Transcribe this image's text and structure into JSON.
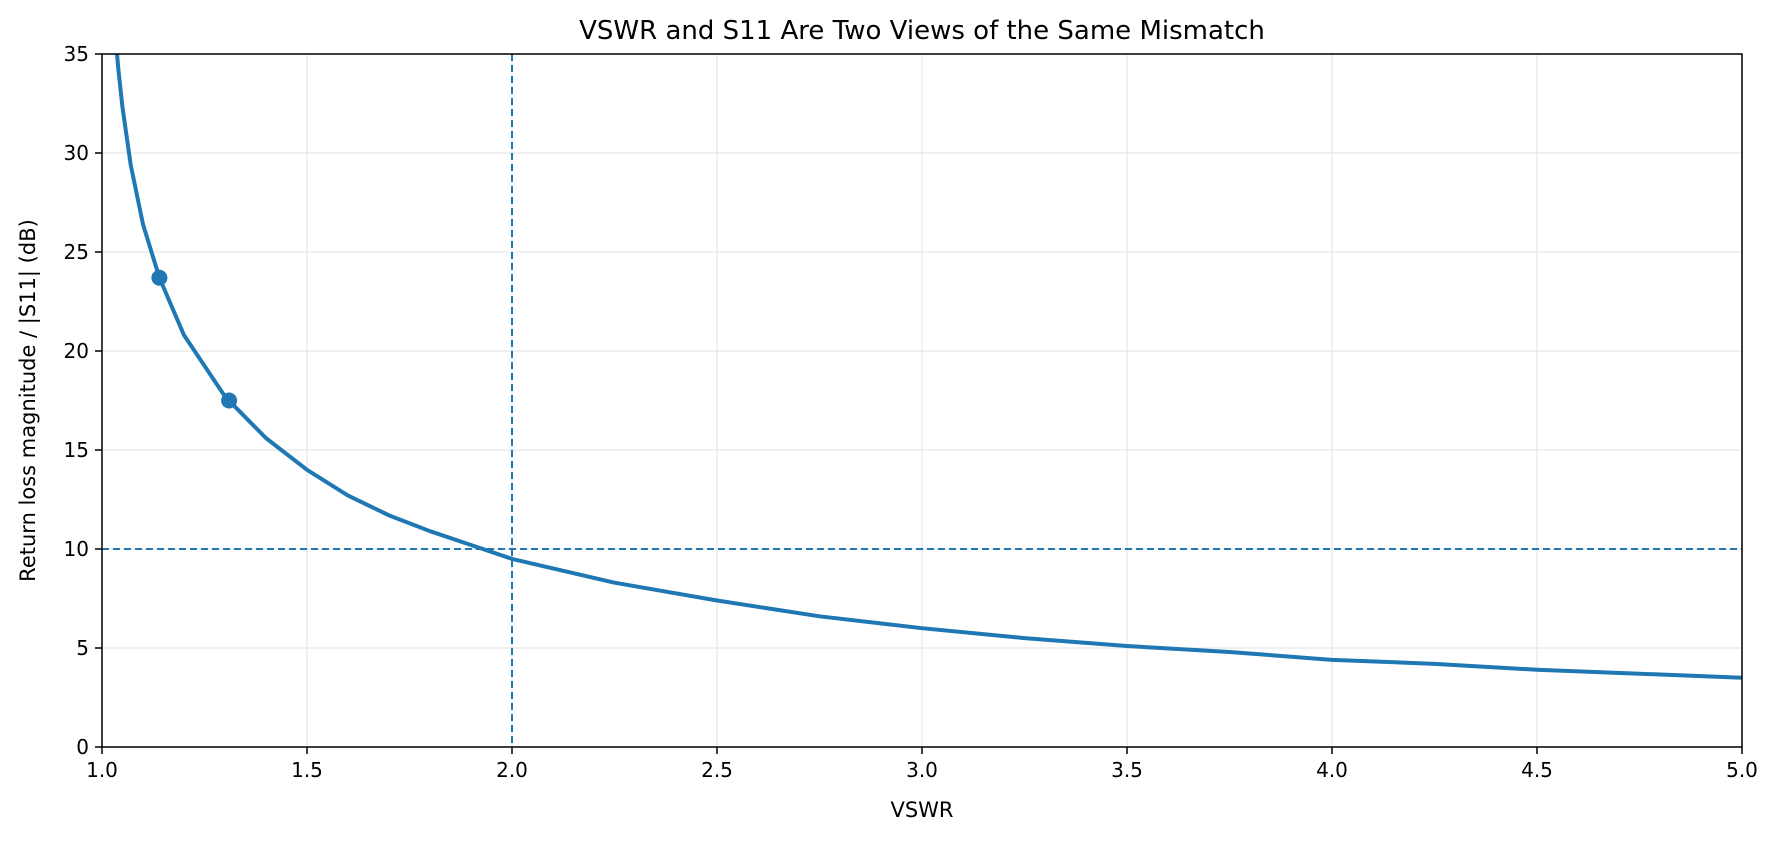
{
  "chart_data": {
    "type": "line",
    "title": "VSWR and S11 Are Two Views of the Same Mismatch",
    "xlabel": "VSWR",
    "ylabel": "Return loss magnitude / |S11| (dB)",
    "xlim": [
      1.0,
      5.0
    ],
    "ylim": [
      0,
      35
    ],
    "x_ticks": [
      1.0,
      1.5,
      2.0,
      2.5,
      3.0,
      3.5,
      4.0,
      4.5,
      5.0
    ],
    "x_tick_labels": [
      "1.0",
      "1.5",
      "2.0",
      "2.5",
      "3.0",
      "3.5",
      "4.0",
      "4.5",
      "5.0"
    ],
    "y_ticks": [
      0,
      5,
      10,
      15,
      20,
      25,
      30,
      35
    ],
    "y_tick_labels": [
      "0",
      "5",
      "10",
      "15",
      "20",
      "25",
      "30",
      "35"
    ],
    "grid": true,
    "series": [
      {
        "color": "#1f77b4",
        "x": [
          1.03,
          1.04,
          1.05,
          1.07,
          1.1,
          1.14,
          1.2,
          1.3,
          1.4,
          1.5,
          1.6,
          1.7,
          1.8,
          1.9,
          2.0,
          2.25,
          2.5,
          2.75,
          3.0,
          3.25,
          3.5,
          3.75,
          4.0,
          4.25,
          4.5,
          4.75,
          5.0
        ],
        "y": [
          36.6,
          34.2,
          32.3,
          29.4,
          26.4,
          23.7,
          20.8,
          17.7,
          15.6,
          14.0,
          12.7,
          11.7,
          10.9,
          10.2,
          9.5,
          8.3,
          7.4,
          6.6,
          6.0,
          5.5,
          5.1,
          4.8,
          4.4,
          4.2,
          3.9,
          3.7,
          3.5
        ]
      }
    ],
    "markers": [
      {
        "x": 1.14,
        "y": 23.7
      },
      {
        "x": 1.31,
        "y": 17.5
      }
    ],
    "reference_lines": [
      {
        "orientation": "vertical",
        "x": 2.0
      },
      {
        "orientation": "horizontal",
        "y": 10
      }
    ],
    "colors": {
      "line": "#1f77b4",
      "reference": "#1f77b4",
      "grid": "#e6e6e6",
      "axis": "#000000"
    }
  }
}
